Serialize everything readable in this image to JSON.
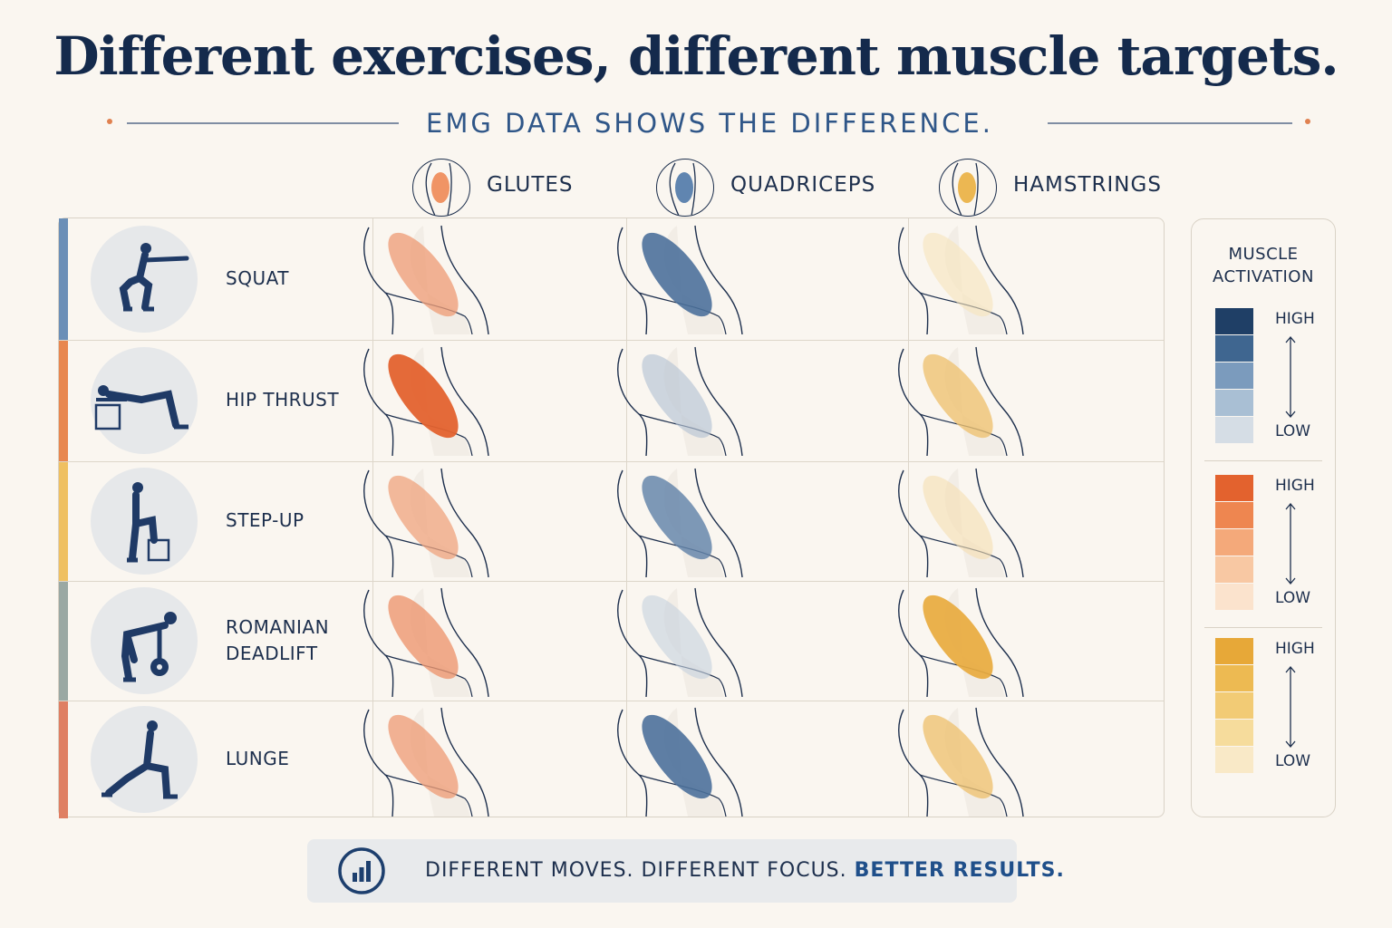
{
  "title": "Different exercises, different muscle targets.",
  "subtitle": "EMG DATA SHOWS THE DIFFERENCE.",
  "columns": [
    {
      "label": "GLUTES",
      "icon": "glutes-icon",
      "color": "#ee8a55"
    },
    {
      "label": "QUADRICEPS",
      "icon": "quadriceps-icon",
      "color": "#4f79a8"
    },
    {
      "label": "HAMSTRINGS",
      "icon": "hamstrings-icon",
      "color": "#eab040"
    }
  ],
  "exercises": [
    {
      "label": "SQUAT",
      "accent": "#6b8fb7",
      "figure": "squat-figure-icon",
      "activation": {
        "glutes": 0.55,
        "quadriceps": 0.85,
        "hamstrings": 0.1
      }
    },
    {
      "label": "HIP THRUST",
      "accent": "#e8874f",
      "figure": "hip-thrust-figure-icon",
      "activation": {
        "glutes": 1.0,
        "quadriceps": 0.25,
        "hamstrings": 0.6
      }
    },
    {
      "label": "STEP-UP",
      "accent": "#efc061",
      "figure": "step-up-figure-icon",
      "activation": {
        "glutes": 0.5,
        "quadriceps": 0.7,
        "hamstrings": 0.15
      }
    },
    {
      "label": "ROMANIAN DEADLIFT",
      "accent": "#9aa8a3",
      "figure": "romanian-deadlift-figure-icon",
      "activation": {
        "glutes": 0.6,
        "quadriceps": 0.15,
        "hamstrings": 0.95
      }
    },
    {
      "label": "LUNGE",
      "accent": "#df7f63",
      "figure": "lunge-figure-icon",
      "activation": {
        "glutes": 0.55,
        "quadriceps": 0.85,
        "hamstrings": 0.6
      }
    }
  ],
  "legend": {
    "title_line1": "MUSCLE",
    "title_line2": "ACTIVATION",
    "scales": [
      {
        "high": "HIGH",
        "low": "LOW",
        "colors": [
          "#1f3f66",
          "#3f6690",
          "#7b9bbd",
          "#a9bfd4",
          "#d5dde5"
        ]
      },
      {
        "high": "HIGH",
        "low": "LOW",
        "colors": [
          "#e3622e",
          "#ee8650",
          "#f4a97a",
          "#f8c8a3",
          "#fbe3cd"
        ]
      },
      {
        "high": "HIGH",
        "low": "LOW",
        "colors": [
          "#e7a838",
          "#edba52",
          "#f2cb75",
          "#f6dc9c",
          "#f9e9c7"
        ]
      }
    ]
  },
  "footer": {
    "icon": "bar-chart-icon",
    "text_normal": "DIFFERENT MOVES. DIFFERENT FOCUS.",
    "text_bold": "BETTER RESULTS."
  }
}
